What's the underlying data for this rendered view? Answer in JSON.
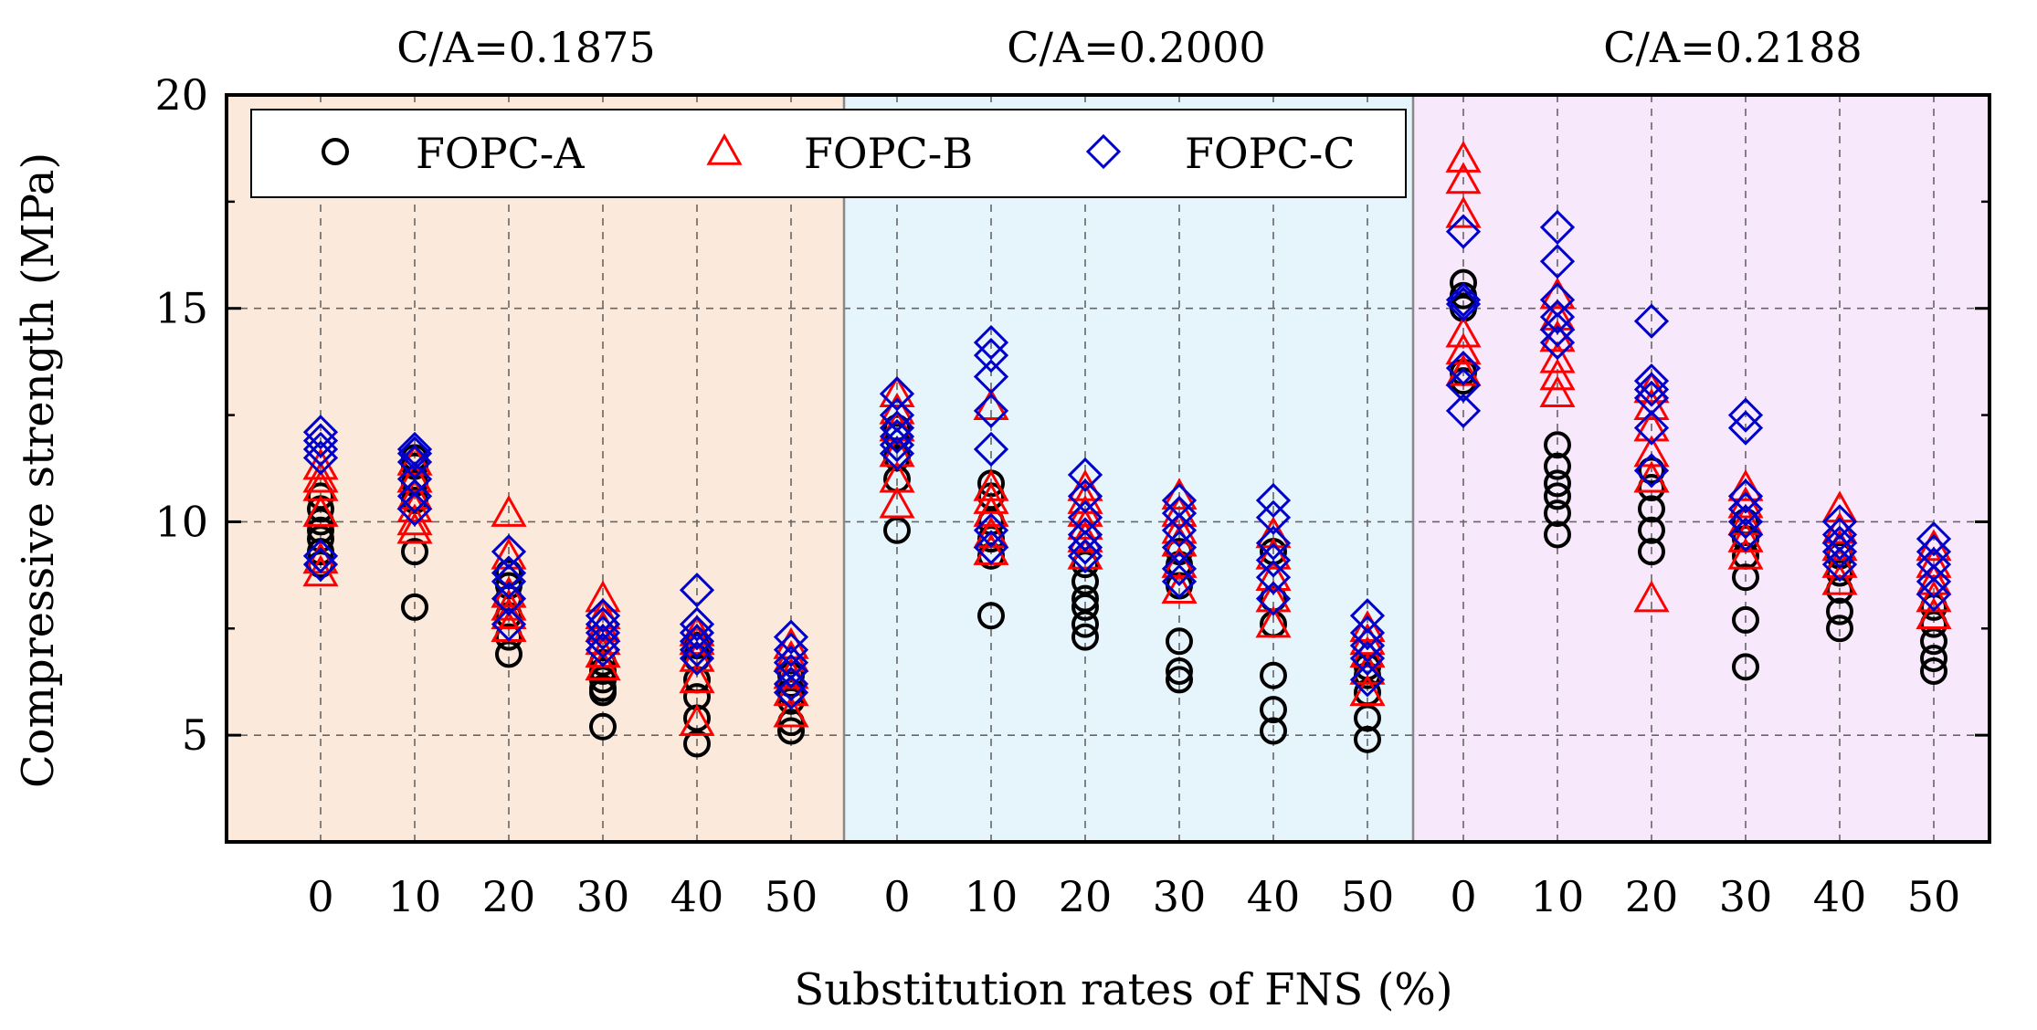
{
  "chart_data": {
    "type": "scatter",
    "ylabel": "Compressive strength (MPa)",
    "xlabel": "Substitution rates of FNS (%)",
    "ylim": [
      2.5,
      20
    ],
    "yticks": [
      5,
      10,
      15,
      20
    ],
    "grid": true,
    "legend_position": "top-left",
    "colors": {
      "FOPC-A": "#000000",
      "FOPC-B": "#ff0000",
      "FOPC-C": "#0000cc",
      "panel_1": "#fbeadb",
      "panel_2": "#e6f4fb",
      "panel_3": "#f8e8fb"
    },
    "legend": [
      {
        "name": "FOPC-A",
        "marker": "circle"
      },
      {
        "name": "FOPC-B",
        "marker": "triangle"
      },
      {
        "name": "FOPC-C",
        "marker": "diamond"
      }
    ],
    "panels": [
      {
        "title": "C/A=0.1875",
        "categories": [
          "0",
          "10",
          "20",
          "30",
          "40",
          "50"
        ],
        "series": {
          "FOPC-A": [
            [
              9.0,
              9.3,
              9.6,
              9.8,
              10.0,
              10.3,
              10.6
            ],
            [
              8.0,
              9.3,
              10.5,
              10.9,
              11.3,
              11.5
            ],
            [
              6.9,
              7.3,
              7.8,
              8.2,
              8.5,
              8.8
            ],
            [
              5.2,
              6.0,
              6.1,
              6.3,
              6.5,
              6.7
            ],
            [
              4.8,
              5.4,
              5.9,
              6.3,
              6.8,
              7.1
            ],
            [
              5.1,
              5.3,
              5.8,
              6.0,
              6.2,
              6.4
            ]
          ],
          "FOPC-B": [
            [
              8.8,
              9.1,
              10.2,
              10.8,
              11.0,
              11.3
            ],
            [
              9.8,
              10.0,
              10.3,
              10.6,
              11.0,
              11.4
            ],
            [
              7.5,
              7.8,
              8.0,
              8.3,
              9.2,
              10.2
            ],
            [
              6.6,
              6.9,
              7.2,
              7.5,
              7.8,
              8.2
            ],
            [
              5.3,
              6.3,
              6.8,
              7.2,
              7.4
            ],
            [
              5.5,
              6.0,
              6.4,
              6.8,
              7.1
            ]
          ],
          "FOPC-C": [
            [
              9.0,
              9.2,
              11.5,
              11.7,
              11.9,
              12.1
            ],
            [
              10.3,
              10.6,
              11.0,
              11.4,
              11.6,
              11.7
            ],
            [
              7.6,
              8.2,
              8.6,
              8.8,
              9.3
            ],
            [
              7.0,
              7.2,
              7.4,
              7.6,
              7.8
            ],
            [
              6.8,
              7.0,
              7.2,
              7.4,
              7.6,
              8.4
            ],
            [
              6.0,
              6.2,
              6.5,
              6.7,
              7.0,
              7.3
            ]
          ]
        }
      },
      {
        "title": "C/A=0.2000",
        "categories": [
          "0",
          "10",
          "20",
          "30",
          "40",
          "50"
        ],
        "series": {
          "FOPC-A": [
            [
              9.8,
              11.0,
              11.5,
              12.0,
              12.2
            ],
            [
              7.8,
              9.2,
              9.6,
              10.0,
              10.6,
              10.9
            ],
            [
              7.3,
              7.6,
              8.0,
              8.2,
              8.6,
              9.0
            ],
            [
              6.3,
              6.5,
              7.2,
              8.5,
              9.0,
              9.3
            ],
            [
              5.1,
              5.6,
              6.4,
              7.6,
              8.2,
              9.3
            ],
            [
              4.9,
              5.4,
              6.0,
              6.4,
              6.6
            ]
          ],
          "FOPC-B": [
            [
              10.4,
              11.0,
              11.6,
              12.2,
              12.6,
              13.0
            ],
            [
              9.3,
              9.7,
              10.2,
              10.5,
              10.8,
              12.7
            ],
            [
              9.2,
              9.6,
              9.9,
              10.2,
              10.5,
              10.8
            ],
            [
              8.4,
              9.0,
              9.5,
              9.8,
              10.2,
              10.6
            ],
            [
              7.6,
              8.2,
              8.7,
              9.2,
              9.7
            ],
            [
              6.0,
              6.5,
              6.9,
              7.2,
              7.5
            ]
          ],
          "FOPC-C": [
            [
              11.6,
              11.8,
              12.0,
              12.2,
              12.5,
              13.0
            ],
            [
              9.4,
              9.8,
              11.7,
              12.6,
              13.4,
              13.9,
              14.2
            ],
            [
              9.2,
              9.4,
              9.7,
              10.1,
              10.6,
              11.1
            ],
            [
              8.6,
              8.9,
              9.4,
              9.8,
              10.2,
              10.5
            ],
            [
              8.2,
              8.7,
              9.1,
              9.5,
              10.1,
              10.5
            ],
            [
              6.3,
              6.8,
              7.1,
              7.4,
              7.8
            ]
          ]
        }
      },
      {
        "title": "C/A=0.2188",
        "categories": [
          "0",
          "10",
          "20",
          "30",
          "40",
          "50"
        ],
        "series": {
          "FOPC-A": [
            [
              13.3,
              13.5,
              15.0,
              15.3,
              15.6
            ],
            [
              9.7,
              10.2,
              10.6,
              10.9,
              11.3,
              11.8
            ],
            [
              9.3,
              9.8,
              10.3,
              10.8,
              11.2
            ],
            [
              6.6,
              7.7,
              8.7,
              9.2,
              9.6,
              10.0
            ],
            [
              7.5,
              7.9,
              8.4,
              8.8,
              9.2
            ],
            [
              6.5,
              6.8,
              7.2,
              7.6,
              8.0
            ]
          ],
          "FOPC-B": [
            [
              13.5,
              14.0,
              14.4,
              17.2,
              18.0,
              18.5
            ],
            [
              13.0,
              13.4,
              13.8,
              14.3,
              14.8,
              15.3
            ],
            [
              8.2,
              11.0,
              11.6,
              12.2,
              12.7,
              13.1
            ],
            [
              9.2,
              9.6,
              10.0,
              10.4,
              10.8
            ],
            [
              8.6,
              9.0,
              9.4,
              9.8,
              10.3
            ],
            [
              7.8,
              8.2,
              8.6,
              9.0,
              9.4
            ]
          ],
          "FOPC-C": [
            [
              12.6,
              13.2,
              13.6,
              15.1,
              15.2,
              16.8
            ],
            [
              14.2,
              14.5,
              14.8,
              15.2,
              16.1,
              16.9
            ],
            [
              11.2,
              12.2,
              12.9,
              13.1,
              13.3,
              14.7
            ],
            [
              9.7,
              10.0,
              10.3,
              10.6,
              12.2,
              12.5
            ],
            [
              9.0,
              9.3,
              9.5,
              9.7,
              10.0
            ],
            [
              8.3,
              8.6,
              9.0,
              9.3,
              9.6
            ]
          ]
        }
      }
    ]
  }
}
